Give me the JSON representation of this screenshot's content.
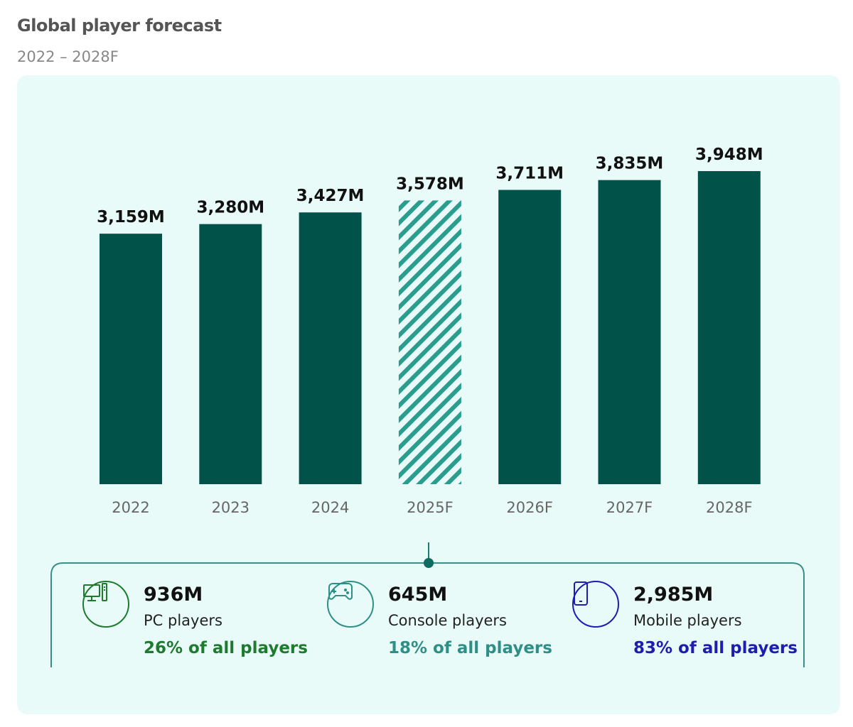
{
  "header": {
    "title": "Global player forecast",
    "subtitle": "2022 – 2028F"
  },
  "chart_data": {
    "type": "bar",
    "categories": [
      "2022",
      "2023",
      "2024",
      "2025F",
      "2026F",
      "2027F",
      "2028F"
    ],
    "values": [
      3159,
      3280,
      3427,
      3578,
      3711,
      3835,
      3948
    ],
    "data_labels": [
      "3,159M",
      "3,280M",
      "3,427M",
      "3,578M",
      "3,711M",
      "3,835M",
      "3,948M"
    ],
    "unit": "M",
    "highlighted": "2025F",
    "ylim": [
      0,
      4000
    ],
    "grid": false,
    "colors": {
      "bar": "#01534a",
      "hatch": "#2a9d8f"
    }
  },
  "stats": [
    {
      "value": "936M",
      "label": "PC players",
      "share": "26% of all players",
      "color": "#1e7a2e",
      "icon": "pc-icon"
    },
    {
      "value": "645M",
      "label": "Console players",
      "share": "18% of all players",
      "color": "#2f8f86",
      "icon": "gamepad-icon"
    },
    {
      "value": "2,985M",
      "label": "Mobile players",
      "share": "83% of all players",
      "color": "#1d1db0",
      "icon": "mobile-phone-icon"
    }
  ]
}
